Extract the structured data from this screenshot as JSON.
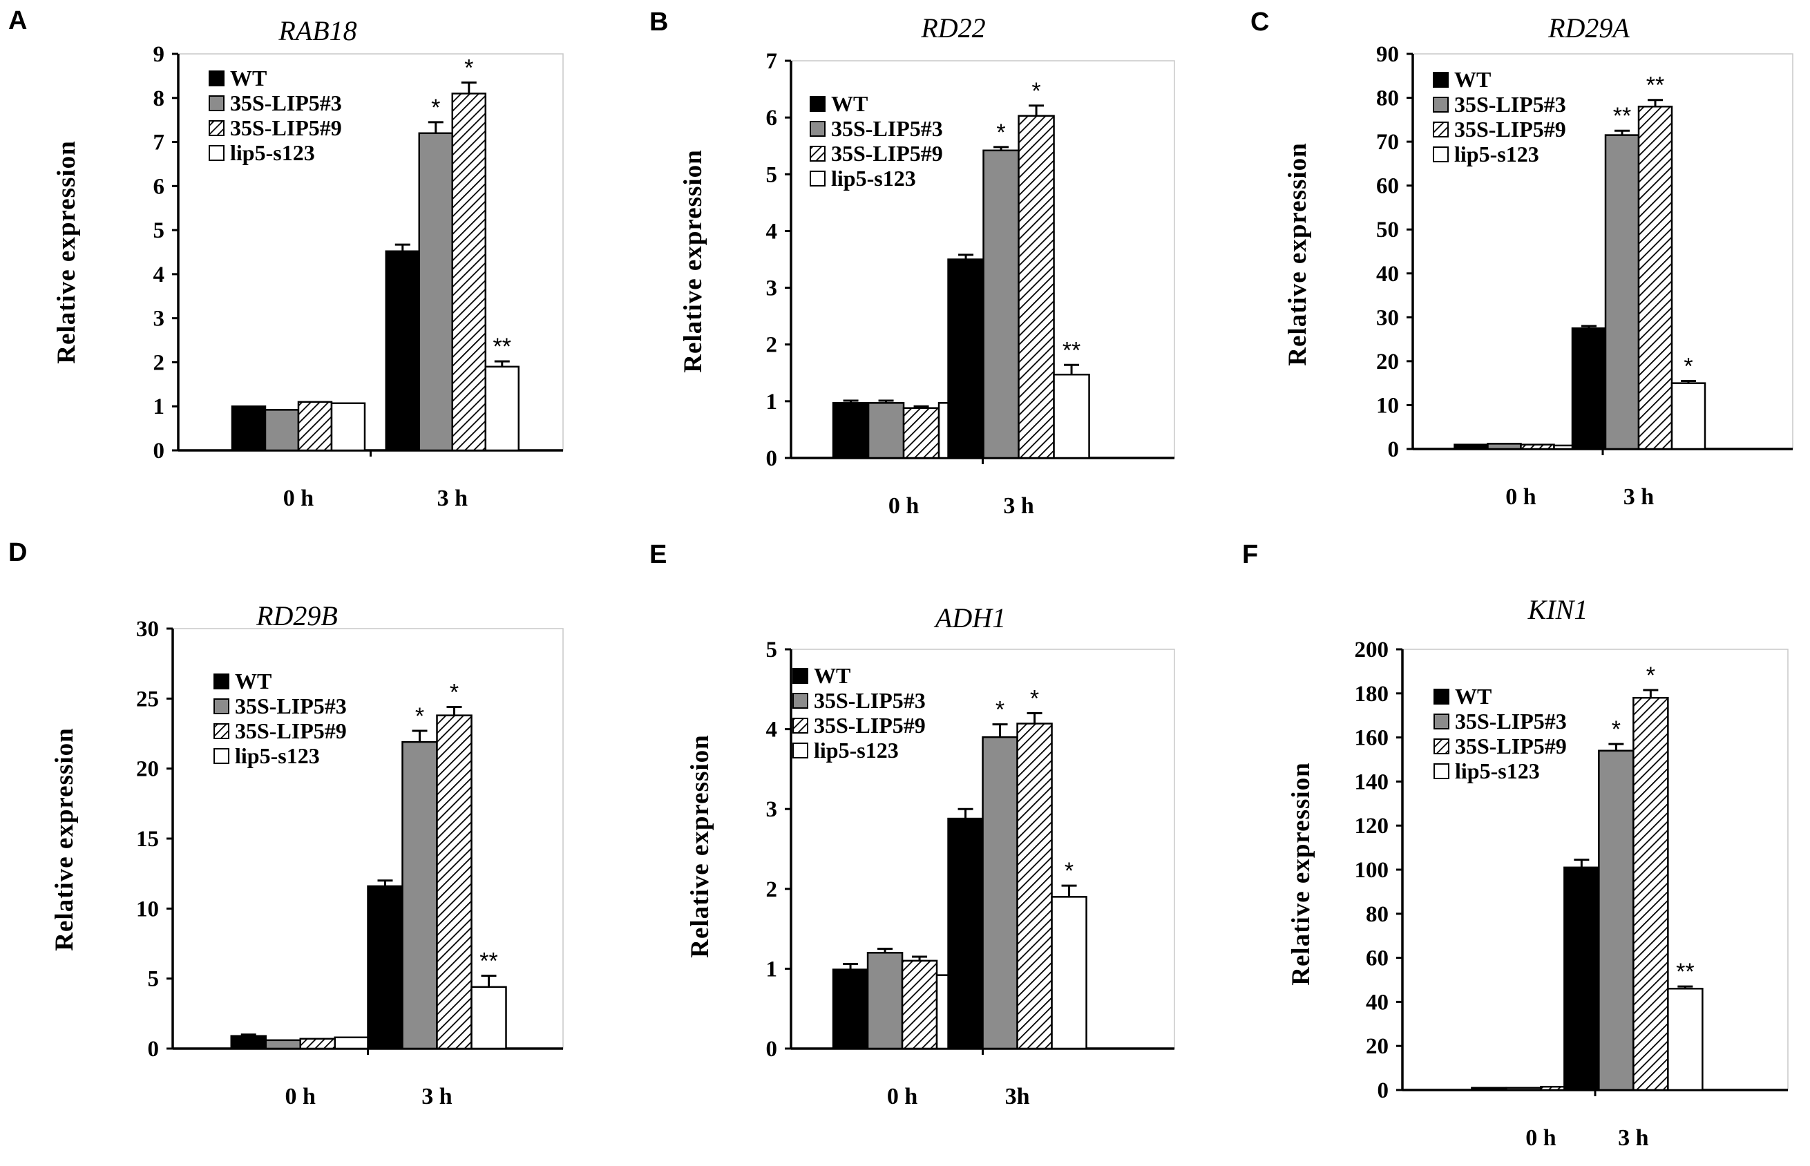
{
  "colors": {
    "WT": "#000000",
    "35S-LIP5#3": "#8c8c8c",
    "35S-LIP5#9": "hatch",
    "lip5-s123": "#ffffff"
  },
  "legend": [
    "WT",
    "35S-LIP5#3",
    "35S-LIP5#9",
    "lip5-s123"
  ],
  "chart_data": [
    {
      "panel": "A",
      "type": "bar",
      "title": "RAB18",
      "ylabel": "Relative  expression",
      "categories": [
        "0 h",
        "3 h"
      ],
      "ylim": [
        0,
        9
      ],
      "yticks": [
        "0",
        "1",
        "2",
        "3",
        "4",
        "5",
        "6",
        "7",
        "8",
        "9"
      ],
      "series": [
        {
          "name": "WT",
          "values": [
            1.0,
            4.52
          ],
          "errors": [
            0.0,
            0.15
          ],
          "sig": [
            "",
            ""
          ]
        },
        {
          "name": "35S-LIP5#3",
          "values": [
            0.92,
            7.2
          ],
          "errors": [
            0.0,
            0.25
          ],
          "sig": [
            "",
            "*"
          ]
        },
        {
          "name": "35S-LIP5#9",
          "values": [
            1.1,
            8.1
          ],
          "errors": [
            0.0,
            0.25
          ],
          "sig": [
            "",
            "*"
          ]
        },
        {
          "name": "lip5-s123",
          "values": [
            1.07,
            1.9
          ],
          "errors": [
            0.0,
            0.12
          ],
          "sig": [
            "",
            "**"
          ]
        }
      ]
    },
    {
      "panel": "B",
      "type": "bar",
      "title": "RD22",
      "ylabel": "Relative  expression",
      "categories": [
        "0 h",
        "3 h"
      ],
      "ylim": [
        0,
        7
      ],
      "yticks": [
        "0",
        "1",
        "2",
        "3",
        "4",
        "5",
        "6",
        "7"
      ],
      "series": [
        {
          "name": "WT",
          "values": [
            0.97,
            3.5
          ],
          "errors": [
            0.04,
            0.08
          ],
          "sig": [
            "",
            ""
          ]
        },
        {
          "name": "35S-LIP5#3",
          "values": [
            0.97,
            5.42
          ],
          "errors": [
            0.04,
            0.06
          ],
          "sig": [
            "",
            "*"
          ]
        },
        {
          "name": "35S-LIP5#9",
          "values": [
            0.88,
            6.03
          ],
          "errors": [
            0.03,
            0.18
          ],
          "sig": [
            "",
            "*"
          ]
        },
        {
          "name": "lip5-s123",
          "values": [
            0.97,
            1.47
          ],
          "errors": [
            0.03,
            0.17
          ],
          "sig": [
            "",
            "**"
          ]
        }
      ]
    },
    {
      "panel": "C",
      "type": "bar",
      "title": "RD29A",
      "ylabel": "Relative  expression",
      "categories": [
        "0 h",
        "3 h"
      ],
      "ylim": [
        0,
        90
      ],
      "yticks": [
        "0",
        "10",
        "20",
        "30",
        "40",
        "50",
        "60",
        "70",
        "80",
        "90"
      ],
      "series": [
        {
          "name": "WT",
          "values": [
            1.0,
            27.5
          ],
          "errors": [
            0.0,
            0.5
          ],
          "sig": [
            "",
            ""
          ]
        },
        {
          "name": "35S-LIP5#3",
          "values": [
            1.2,
            71.5
          ],
          "errors": [
            0.0,
            1.0
          ],
          "sig": [
            "",
            "**"
          ]
        },
        {
          "name": "35S-LIP5#9",
          "values": [
            1.0,
            78.0
          ],
          "errors": [
            0.0,
            1.5
          ],
          "sig": [
            "",
            "**"
          ]
        },
        {
          "name": "lip5-s123",
          "values": [
            0.8,
            15.0
          ],
          "errors": [
            0.0,
            0.5
          ],
          "sig": [
            "",
            "*"
          ]
        }
      ]
    },
    {
      "panel": "D",
      "type": "bar",
      "title": "RD29B",
      "ylabel": "Relative  expression",
      "categories": [
        "0 h",
        "3 h"
      ],
      "ylim": [
        0,
        30
      ],
      "yticks": [
        "0",
        "5",
        "10",
        "15",
        "20",
        "25",
        "30"
      ],
      "series": [
        {
          "name": "WT",
          "values": [
            0.9,
            11.6
          ],
          "errors": [
            0.1,
            0.4
          ],
          "sig": [
            "",
            ""
          ]
        },
        {
          "name": "35S-LIP5#3",
          "values": [
            0.6,
            21.9
          ],
          "errors": [
            0.0,
            0.8
          ],
          "sig": [
            "",
            "*"
          ]
        },
        {
          "name": "35S-LIP5#9",
          "values": [
            0.7,
            23.8
          ],
          "errors": [
            0.0,
            0.6
          ],
          "sig": [
            "",
            "*"
          ]
        },
        {
          "name": "lip5-s123",
          "values": [
            0.8,
            4.4
          ],
          "errors": [
            0.0,
            0.8
          ],
          "sig": [
            "",
            "**"
          ]
        }
      ]
    },
    {
      "panel": "E",
      "type": "bar",
      "title": "ADH1",
      "ylabel": "Relative  expression",
      "categories": [
        "0 h",
        "3h"
      ],
      "ylim": [
        0,
        5
      ],
      "yticks": [
        "0",
        "1",
        "2",
        "3",
        "4",
        "5"
      ],
      "series": [
        {
          "name": "WT",
          "values": [
            0.99,
            2.88
          ],
          "errors": [
            0.07,
            0.12
          ],
          "sig": [
            "",
            ""
          ]
        },
        {
          "name": "35S-LIP5#3",
          "values": [
            1.2,
            3.9
          ],
          "errors": [
            0.05,
            0.16
          ],
          "sig": [
            "",
            "*"
          ]
        },
        {
          "name": "35S-LIP5#9",
          "values": [
            1.1,
            4.07
          ],
          "errors": [
            0.05,
            0.13
          ],
          "sig": [
            "",
            "*"
          ]
        },
        {
          "name": "lip5-s123",
          "values": [
            0.92,
            1.9
          ],
          "errors": [
            0.0,
            0.14
          ],
          "sig": [
            "",
            "*"
          ]
        }
      ]
    },
    {
      "panel": "F",
      "type": "bar",
      "title": "KIN1",
      "ylabel": "Relative expression",
      "categories": [
        "0 h",
        "3 h"
      ],
      "ylim": [
        0,
        200
      ],
      "yticks": [
        "0",
        "20",
        "40",
        "60",
        "80",
        "100",
        "120",
        "140",
        "160",
        "180",
        "200"
      ],
      "series": [
        {
          "name": "WT",
          "values": [
            1.0,
            101.0
          ],
          "errors": [
            0.0,
            3.5
          ],
          "sig": [
            "",
            ""
          ]
        },
        {
          "name": "35S-LIP5#3",
          "values": [
            1.0,
            154.0
          ],
          "errors": [
            0.0,
            3.0
          ],
          "sig": [
            "",
            "*"
          ]
        },
        {
          "name": "35S-LIP5#9",
          "values": [
            1.5,
            178.0
          ],
          "errors": [
            0.0,
            3.5
          ],
          "sig": [
            "",
            "*"
          ]
        },
        {
          "name": "lip5-s123",
          "values": [
            1.0,
            46.0
          ],
          "errors": [
            0.0,
            1.0
          ],
          "sig": [
            "",
            "**"
          ]
        }
      ]
    }
  ]
}
